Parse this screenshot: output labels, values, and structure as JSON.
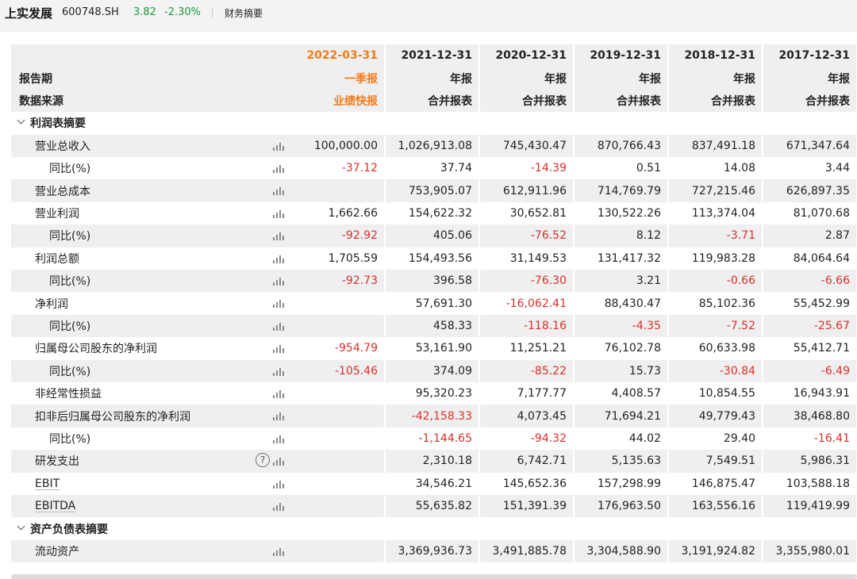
{
  "header": {
    "stock_name": "上实发展",
    "stock_code": "600748.SH",
    "price": "3.82",
    "change_pct": "-2.30%",
    "section": "财务摘要"
  },
  "table": {
    "header_rows": [
      {
        "label": "",
        "cells": [
          "2022-03-31",
          "2021-12-31",
          "2020-12-31",
          "2019-12-31",
          "2018-12-31",
          "2017-12-31"
        ]
      },
      {
        "label": "报告期",
        "cells": [
          "一季报",
          "年报",
          "年报",
          "年报",
          "年报",
          "年报"
        ]
      },
      {
        "label": "数据来源",
        "cells": [
          "业绩快报",
          "合并报表",
          "合并报表",
          "合并报表",
          "合并报表",
          "合并报表"
        ]
      }
    ],
    "sections": [
      {
        "title": "利润表摘要",
        "rows": [
          {
            "label": "营业总收入",
            "indent": 1,
            "cells": [
              "100,000.00",
              "1,026,913.08",
              "745,430.47",
              "870,766.43",
              "837,491.18",
              "671,347.64"
            ]
          },
          {
            "label": "同比(%)",
            "indent": 2,
            "cells": [
              "-37.12",
              "37.74",
              "-14.39",
              "0.51",
              "14.08",
              "3.44"
            ]
          },
          {
            "label": "营业总成本",
            "indent": 1,
            "cells": [
              "",
              "753,905.07",
              "612,911.96",
              "714,769.79",
              "727,215.46",
              "626,897.35"
            ]
          },
          {
            "label": "营业利润",
            "indent": 1,
            "cells": [
              "1,662.66",
              "154,622.32",
              "30,652.81",
              "130,522.26",
              "113,374.04",
              "81,070.68"
            ]
          },
          {
            "label": "同比(%)",
            "indent": 2,
            "cells": [
              "-92.92",
              "405.06",
              "-76.52",
              "8.12",
              "-3.71",
              "2.87"
            ]
          },
          {
            "label": "利润总额",
            "indent": 1,
            "cells": [
              "1,705.59",
              "154,493.56",
              "31,149.53",
              "131,417.32",
              "119,983.28",
              "84,064.64"
            ]
          },
          {
            "label": "同比(%)",
            "indent": 2,
            "cells": [
              "-92.73",
              "396.58",
              "-76.30",
              "3.21",
              "-0.66",
              "-6.66"
            ]
          },
          {
            "label": "净利润",
            "indent": 1,
            "cells": [
              "",
              "57,691.30",
              "-16,062.41",
              "88,430.47",
              "85,102.36",
              "55,452.99"
            ]
          },
          {
            "label": "同比(%)",
            "indent": 2,
            "cells": [
              "",
              "458.33",
              "-118.16",
              "-4.35",
              "-7.52",
              "-25.67"
            ]
          },
          {
            "label": "归属母公司股东的净利润",
            "indent": 1,
            "cells": [
              "-954.79",
              "53,161.90",
              "11,251.21",
              "76,102.78",
              "60,633.98",
              "55,412.71"
            ]
          },
          {
            "label": "同比(%)",
            "indent": 2,
            "cells": [
              "-105.46",
              "374.09",
              "-85.22",
              "15.73",
              "-30.84",
              "-6.49"
            ]
          },
          {
            "label": "非经常性损益",
            "indent": 1,
            "cells": [
              "",
              "95,320.23",
              "7,177.77",
              "4,408.57",
              "10,854.55",
              "16,943.91"
            ]
          },
          {
            "label": "扣非后归属母公司股东的净利润",
            "indent": 1,
            "cells": [
              "",
              "-42,158.33",
              "4,073.45",
              "71,694.21",
              "49,779.43",
              "38,468.80"
            ]
          },
          {
            "label": "同比(%)",
            "indent": 2,
            "cells": [
              "",
              "-1,144.65",
              "-94.32",
              "44.02",
              "29.40",
              "-16.41"
            ]
          },
          {
            "label": "研发支出",
            "indent": 1,
            "help": true,
            "cells": [
              "",
              "2,310.18",
              "6,742.71",
              "5,135.63",
              "7,549.51",
              "5,986.31"
            ]
          },
          {
            "label": "EBIT",
            "indent": 1,
            "underline": true,
            "cells": [
              "",
              "34,546.21",
              "145,652.36",
              "157,298.99",
              "146,875.47",
              "103,588.18"
            ]
          },
          {
            "label": "EBITDA",
            "indent": 1,
            "underline": true,
            "cells": [
              "",
              "55,635.82",
              "151,391.39",
              "176,963.50",
              "163,556.16",
              "119,419.99"
            ]
          }
        ]
      },
      {
        "title": "资产负债表摘要",
        "rows": [
          {
            "label": "流动资产",
            "indent": 1,
            "cells": [
              "",
              "3,369,936.73",
              "3,491,885.78",
              "3,304,588.90",
              "3,191,924.82",
              "3,355,980.01"
            ]
          }
        ]
      }
    ]
  },
  "colors": {
    "accent_orange": "#f07b1a",
    "negative_red": "#d8302a",
    "positive_green": "#1a9a3a",
    "shade": "#efefef"
  },
  "icons": {
    "chart": "bar-chart-icon",
    "help": "question-icon",
    "collapse": "chevron-down-icon"
  }
}
